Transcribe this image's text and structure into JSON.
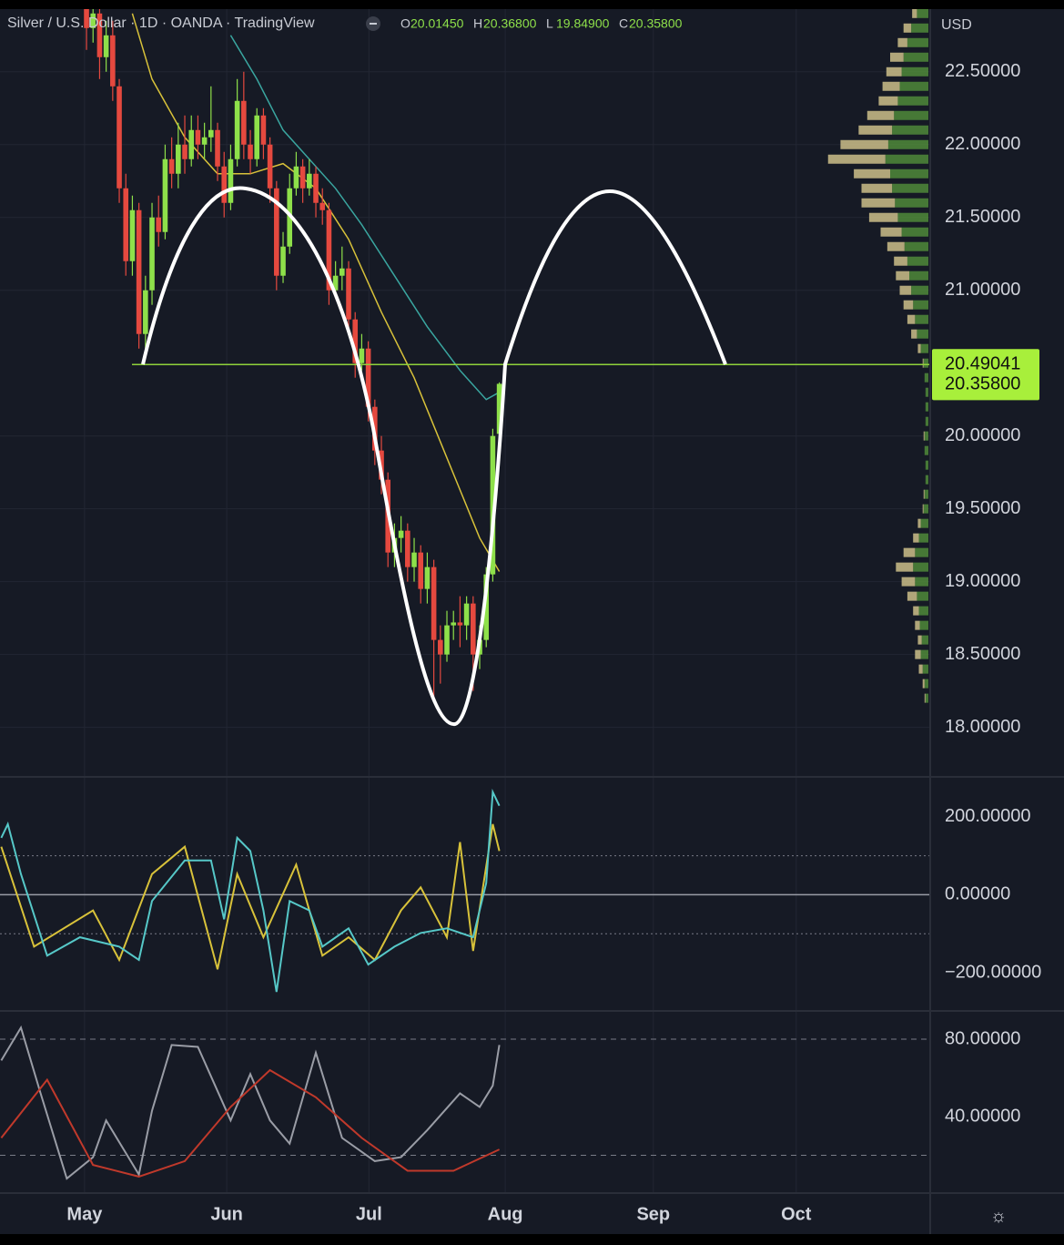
{
  "header": {
    "title": "Silver / U.S. Dollar · 1D · OANDA · TradingView",
    "ohlc": [
      {
        "key": "O",
        "value": "20.01450"
      },
      {
        "key": "H",
        "value": "20.36800"
      },
      {
        "key": "L",
        "value": "19.84900"
      },
      {
        "key": "C",
        "value": "20.35800"
      }
    ]
  },
  "chart_data": [
    {
      "type": "candlestick",
      "currency": "USD",
      "xlim": [
        -13.2,
        128.75
      ],
      "xticks": [
        {
          "value": -0.3,
          "label": "May"
        },
        {
          "value": 21.4,
          "label": "Jun"
        },
        {
          "value": 43.1,
          "label": "Jul"
        },
        {
          "value": 63.9,
          "label": "Aug"
        },
        {
          "value": 86.5,
          "label": "Sep"
        },
        {
          "value": 108.3,
          "label": "Oct"
        }
      ],
      "ylim": [
        17.66,
        22.93
      ],
      "yticks": [
        {
          "value": 18,
          "label": "18.00000"
        },
        {
          "value": 18.5,
          "label": "18.50000"
        },
        {
          "value": 19,
          "label": "19.00000"
        },
        {
          "value": 19.5,
          "label": "19.50000"
        },
        {
          "value": 20,
          "label": "20.00000"
        },
        {
          "value": 21,
          "label": "21.00000"
        },
        {
          "value": 21.5,
          "label": "21.50000"
        },
        {
          "value": 22,
          "label": "22.00000"
        },
        {
          "value": 22.5,
          "label": "22.50000"
        }
      ],
      "grid": true,
      "colors": {
        "up": "#8ee04a",
        "down": "#e5493f"
      },
      "open": [
        22.95,
        22.8,
        22.9,
        22.6,
        22.75,
        22.4,
        21.7,
        21.2,
        21.55,
        20.7,
        21.0,
        21.5,
        21.4,
        21.9,
        21.8,
        22.0,
        21.9,
        22.1,
        22.0,
        22.05,
        22.1,
        21.85,
        21.6,
        21.9,
        22.3,
        22.0,
        21.9,
        22.2,
        22.0,
        21.7,
        21.1,
        21.3,
        21.7,
        21.85,
        21.7,
        21.8,
        21.6,
        21.55,
        21.0,
        21.1,
        21.15,
        20.8,
        20.5,
        20.6,
        20.2,
        19.9,
        19.7,
        19.2,
        19.3,
        19.35,
        19.1,
        19.2,
        18.95,
        19.1,
        18.6,
        18.5,
        18.7,
        18.72,
        18.7,
        18.85,
        18.5,
        18.6,
        19.05,
        20.0145
      ],
      "high": [
        23.05,
        23.0,
        23.0,
        22.85,
        22.85,
        22.45,
        21.8,
        21.65,
        21.6,
        21.1,
        21.6,
        21.65,
        22.0,
        22.05,
        22.15,
        22.2,
        22.2,
        22.2,
        22.15,
        22.4,
        22.15,
        21.95,
        22.0,
        22.45,
        22.5,
        22.1,
        22.25,
        22.25,
        22.05,
        21.75,
        21.4,
        21.8,
        21.95,
        21.9,
        21.9,
        21.85,
        21.7,
        21.6,
        21.2,
        21.3,
        21.2,
        20.85,
        20.7,
        20.65,
        20.25,
        20.0,
        19.75,
        19.4,
        19.45,
        19.4,
        19.3,
        19.25,
        19.2,
        19.15,
        18.7,
        18.8,
        18.8,
        18.9,
        18.9,
        18.9,
        18.7,
        19.1,
        20.05,
        20.368
      ],
      "low": [
        22.65,
        22.7,
        22.45,
        22.5,
        22.3,
        21.6,
        21.1,
        21.1,
        20.6,
        20.6,
        20.9,
        21.3,
        21.35,
        21.7,
        21.7,
        21.8,
        21.85,
        21.9,
        21.9,
        21.95,
        21.75,
        21.5,
        21.55,
        21.85,
        21.9,
        21.8,
        21.85,
        21.9,
        21.6,
        21.0,
        21.05,
        21.25,
        21.65,
        21.6,
        21.65,
        21.5,
        21.45,
        20.9,
        20.95,
        21.0,
        20.7,
        20.4,
        20.45,
        20.1,
        19.8,
        19.6,
        19.1,
        19.1,
        19.2,
        19.0,
        19.0,
        18.85,
        18.85,
        18.2,
        18.3,
        18.45,
        18.6,
        18.55,
        18.6,
        18.25,
        18.4,
        18.55,
        19.0,
        19.849
      ],
      "close": [
        22.8,
        22.9,
        22.6,
        22.75,
        22.4,
        21.7,
        21.2,
        21.55,
        20.7,
        21.0,
        21.5,
        21.4,
        21.9,
        21.8,
        22.0,
        21.9,
        22.1,
        22.0,
        22.05,
        22.1,
        21.85,
        21.6,
        21.9,
        22.3,
        22.0,
        21.9,
        22.2,
        22.0,
        21.7,
        21.1,
        21.3,
        21.7,
        21.85,
        21.7,
        21.8,
        21.6,
        21.55,
        21.0,
        21.1,
        21.15,
        20.8,
        20.5,
        20.6,
        20.2,
        19.9,
        19.7,
        19.2,
        19.3,
        19.35,
        19.1,
        19.2,
        18.95,
        19.1,
        18.6,
        18.5,
        18.7,
        18.72,
        18.7,
        18.85,
        18.5,
        18.6,
        19.05,
        20.0,
        20.358
      ],
      "moving_averages": [
        {
          "color": "#d8c23a",
          "x": [
            7,
            10,
            15,
            20,
            25,
            30,
            35,
            40,
            45,
            50,
            55,
            60,
            63
          ],
          "values": [
            22.9,
            22.45,
            22.05,
            21.8,
            21.8,
            21.87,
            21.7,
            21.35,
            20.85,
            20.4,
            19.85,
            19.3,
            19.07
          ]
        },
        {
          "color": "#3aa6a0",
          "x": [
            22,
            26,
            30,
            33,
            38,
            42,
            47,
            52,
            57,
            61,
            63
          ],
          "values": [
            22.75,
            22.45,
            22.1,
            21.95,
            21.7,
            21.45,
            21.1,
            20.75,
            20.45,
            20.25,
            20.3
          ]
        }
      ],
      "horizontal_line": {
        "value": 20.49041,
        "label": "20.49041",
        "color": "#8fd13a"
      },
      "last_price": {
        "value": 20.358,
        "label": "20.35800"
      },
      "volume_profile": {
        "prices": [
          18.2,
          18.3,
          18.4,
          18.5,
          18.6,
          18.7,
          18.8,
          18.9,
          19.0,
          19.1,
          19.2,
          19.3,
          19.4,
          19.5,
          19.6,
          19.7,
          19.8,
          19.9,
          20.0,
          20.1,
          20.2,
          20.3,
          20.4,
          20.5,
          20.6,
          20.7,
          20.8,
          20.9,
          21.0,
          21.1,
          21.2,
          21.3,
          21.4,
          21.5,
          21.6,
          21.7,
          21.8,
          21.9,
          22.0,
          22.1,
          22.2,
          22.3,
          22.4,
          22.5,
          22.6,
          22.7,
          22.8,
          22.9
        ],
        "series": [
          {
            "color": "#4f8a3a",
            "values": [
              3,
              4,
              6,
              8,
              7,
              9,
              10,
              12,
              14,
              16,
              14,
              10,
              8,
              5,
              4,
              3,
              3,
              4,
              4,
              3,
              3,
              3,
              4,
              5,
              8,
              12,
              14,
              16,
              18,
              20,
              22,
              25,
              28,
              32,
              35,
              38,
              40,
              45,
              42,
              38,
              36,
              32,
              30,
              28,
              26,
              22,
              18,
              12
            ]
          },
          {
            "color": "#cdbf8a",
            "values": [
              1,
              2,
              4,
              6,
              4,
              5,
              6,
              10,
              14,
              18,
              12,
              6,
              3,
              1,
              1,
              0,
              0,
              0,
              1,
              0,
              0,
              0,
              0,
              1,
              3,
              6,
              8,
              10,
              12,
              14,
              14,
              18,
              22,
              30,
              35,
              32,
              38,
              60,
              50,
              35,
              28,
              20,
              18,
              16,
              14,
              10,
              8,
              5
            ]
          }
        ]
      }
    },
    {
      "type": "line",
      "ylim": [
        -293,
        302
      ],
      "yticks": [
        {
          "value": 200,
          "label": "200.00000"
        },
        {
          "value": 0,
          "label": "0.00000"
        },
        {
          "value": -200,
          "label": "−200.00000"
        }
      ],
      "levels": [
        100,
        -100
      ],
      "series": [
        {
          "color": "#d8c23a",
          "x": [
            -13,
            -8,
            1,
            5,
            10,
            15,
            20,
            23,
            27,
            32,
            36,
            40,
            44,
            48,
            51,
            55,
            57,
            59,
            62,
            63
          ],
          "values": [
            123,
            -133,
            -40,
            -167,
            53,
            123,
            -191,
            53,
            -109,
            77,
            -156,
            -109,
            -167,
            -40,
            19,
            -109,
            135,
            -144,
            181,
            112
          ]
        },
        {
          "color": "#56c8c8",
          "x": [
            -13,
            -12,
            -10,
            -6,
            -1,
            5,
            8,
            10,
            15,
            19,
            21,
            23,
            25,
            27,
            29,
            31,
            34,
            36,
            40,
            43,
            47,
            51,
            55,
            59,
            61,
            62,
            63
          ],
          "values": [
            146,
            181,
            53,
            -156,
            -109,
            -133,
            -167,
            -16,
            88,
            88,
            -63,
            146,
            112,
            -40,
            -249,
            -16,
            -40,
            -133,
            -86,
            -179,
            -133,
            -98,
            -86,
            -109,
            30,
            263,
            228
          ]
        }
      ]
    },
    {
      "type": "line",
      "ylim": [
        1.4,
        94.6
      ],
      "yticks": [
        {
          "value": 80,
          "label": "80.00000"
        },
        {
          "value": 40,
          "label": "40.00000"
        }
      ],
      "levels": [
        80,
        20
      ],
      "series": [
        {
          "color": "#9a9da6",
          "x": [
            -13,
            -10,
            -7,
            -3,
            1,
            3,
            8,
            10,
            13,
            17,
            22,
            25,
            28,
            31,
            35,
            39,
            44,
            48,
            52,
            57,
            60,
            62,
            63
          ],
          "values": [
            69,
            86,
            52,
            8,
            19,
            38,
            10,
            43,
            77,
            76,
            38,
            62,
            38,
            26,
            73,
            29,
            17,
            19,
            33,
            52,
            45,
            56,
            77
          ]
        },
        {
          "color": "#c0392b",
          "x": [
            -13,
            -6,
            1,
            8,
            15,
            22,
            28,
            35,
            42,
            49,
            56,
            63
          ],
          "values": [
            29,
            59,
            15,
            9,
            17,
            45,
            64,
            50,
            29,
            12,
            12,
            23
          ]
        }
      ]
    }
  ]
}
